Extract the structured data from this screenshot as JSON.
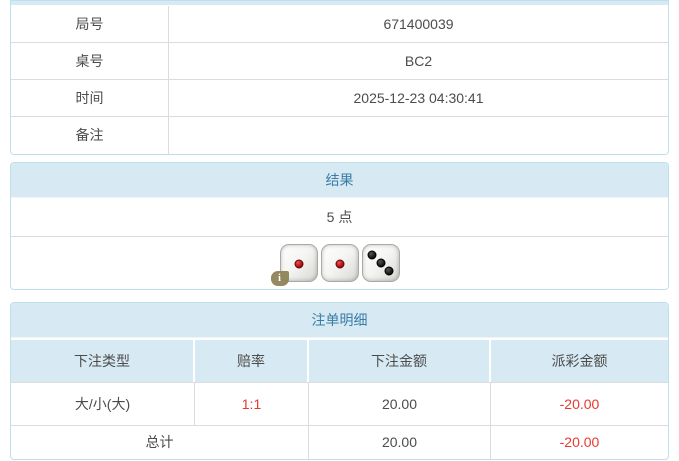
{
  "colors": {
    "panel_header_bg": "#d7eaf3",
    "panel_border": "#bee0ec",
    "header_text_blue": "#3a7ca5",
    "body_text": "#4c4c4c",
    "negative_red": "#e8392f",
    "row_divider": "#dcdcdc"
  },
  "info_table": {
    "rows": [
      {
        "label": "局号",
        "value": "671400039"
      },
      {
        "label": "桌号",
        "value": "BC2"
      },
      {
        "label": "时间",
        "value": "2025-12-23 04:30:41"
      },
      {
        "label": "备注",
        "value": ""
      }
    ]
  },
  "result_panel": {
    "title": "结果",
    "points": "5 点",
    "dice": [
      {
        "value": 1,
        "color": "red"
      },
      {
        "value": 1,
        "color": "red"
      },
      {
        "value": 3,
        "color": "black"
      }
    ],
    "info_badge": "i"
  },
  "bets_panel": {
    "title": "注单明细",
    "columns": [
      "下注类型",
      "赔率",
      "下注金额",
      "派彩金额"
    ],
    "rows": [
      {
        "type": "大/小(大)",
        "odds": "1:1",
        "bet": "20.00",
        "payout": "-20.00"
      }
    ],
    "total": {
      "label": "总计",
      "bet": "20.00",
      "payout": "-20.00"
    }
  }
}
